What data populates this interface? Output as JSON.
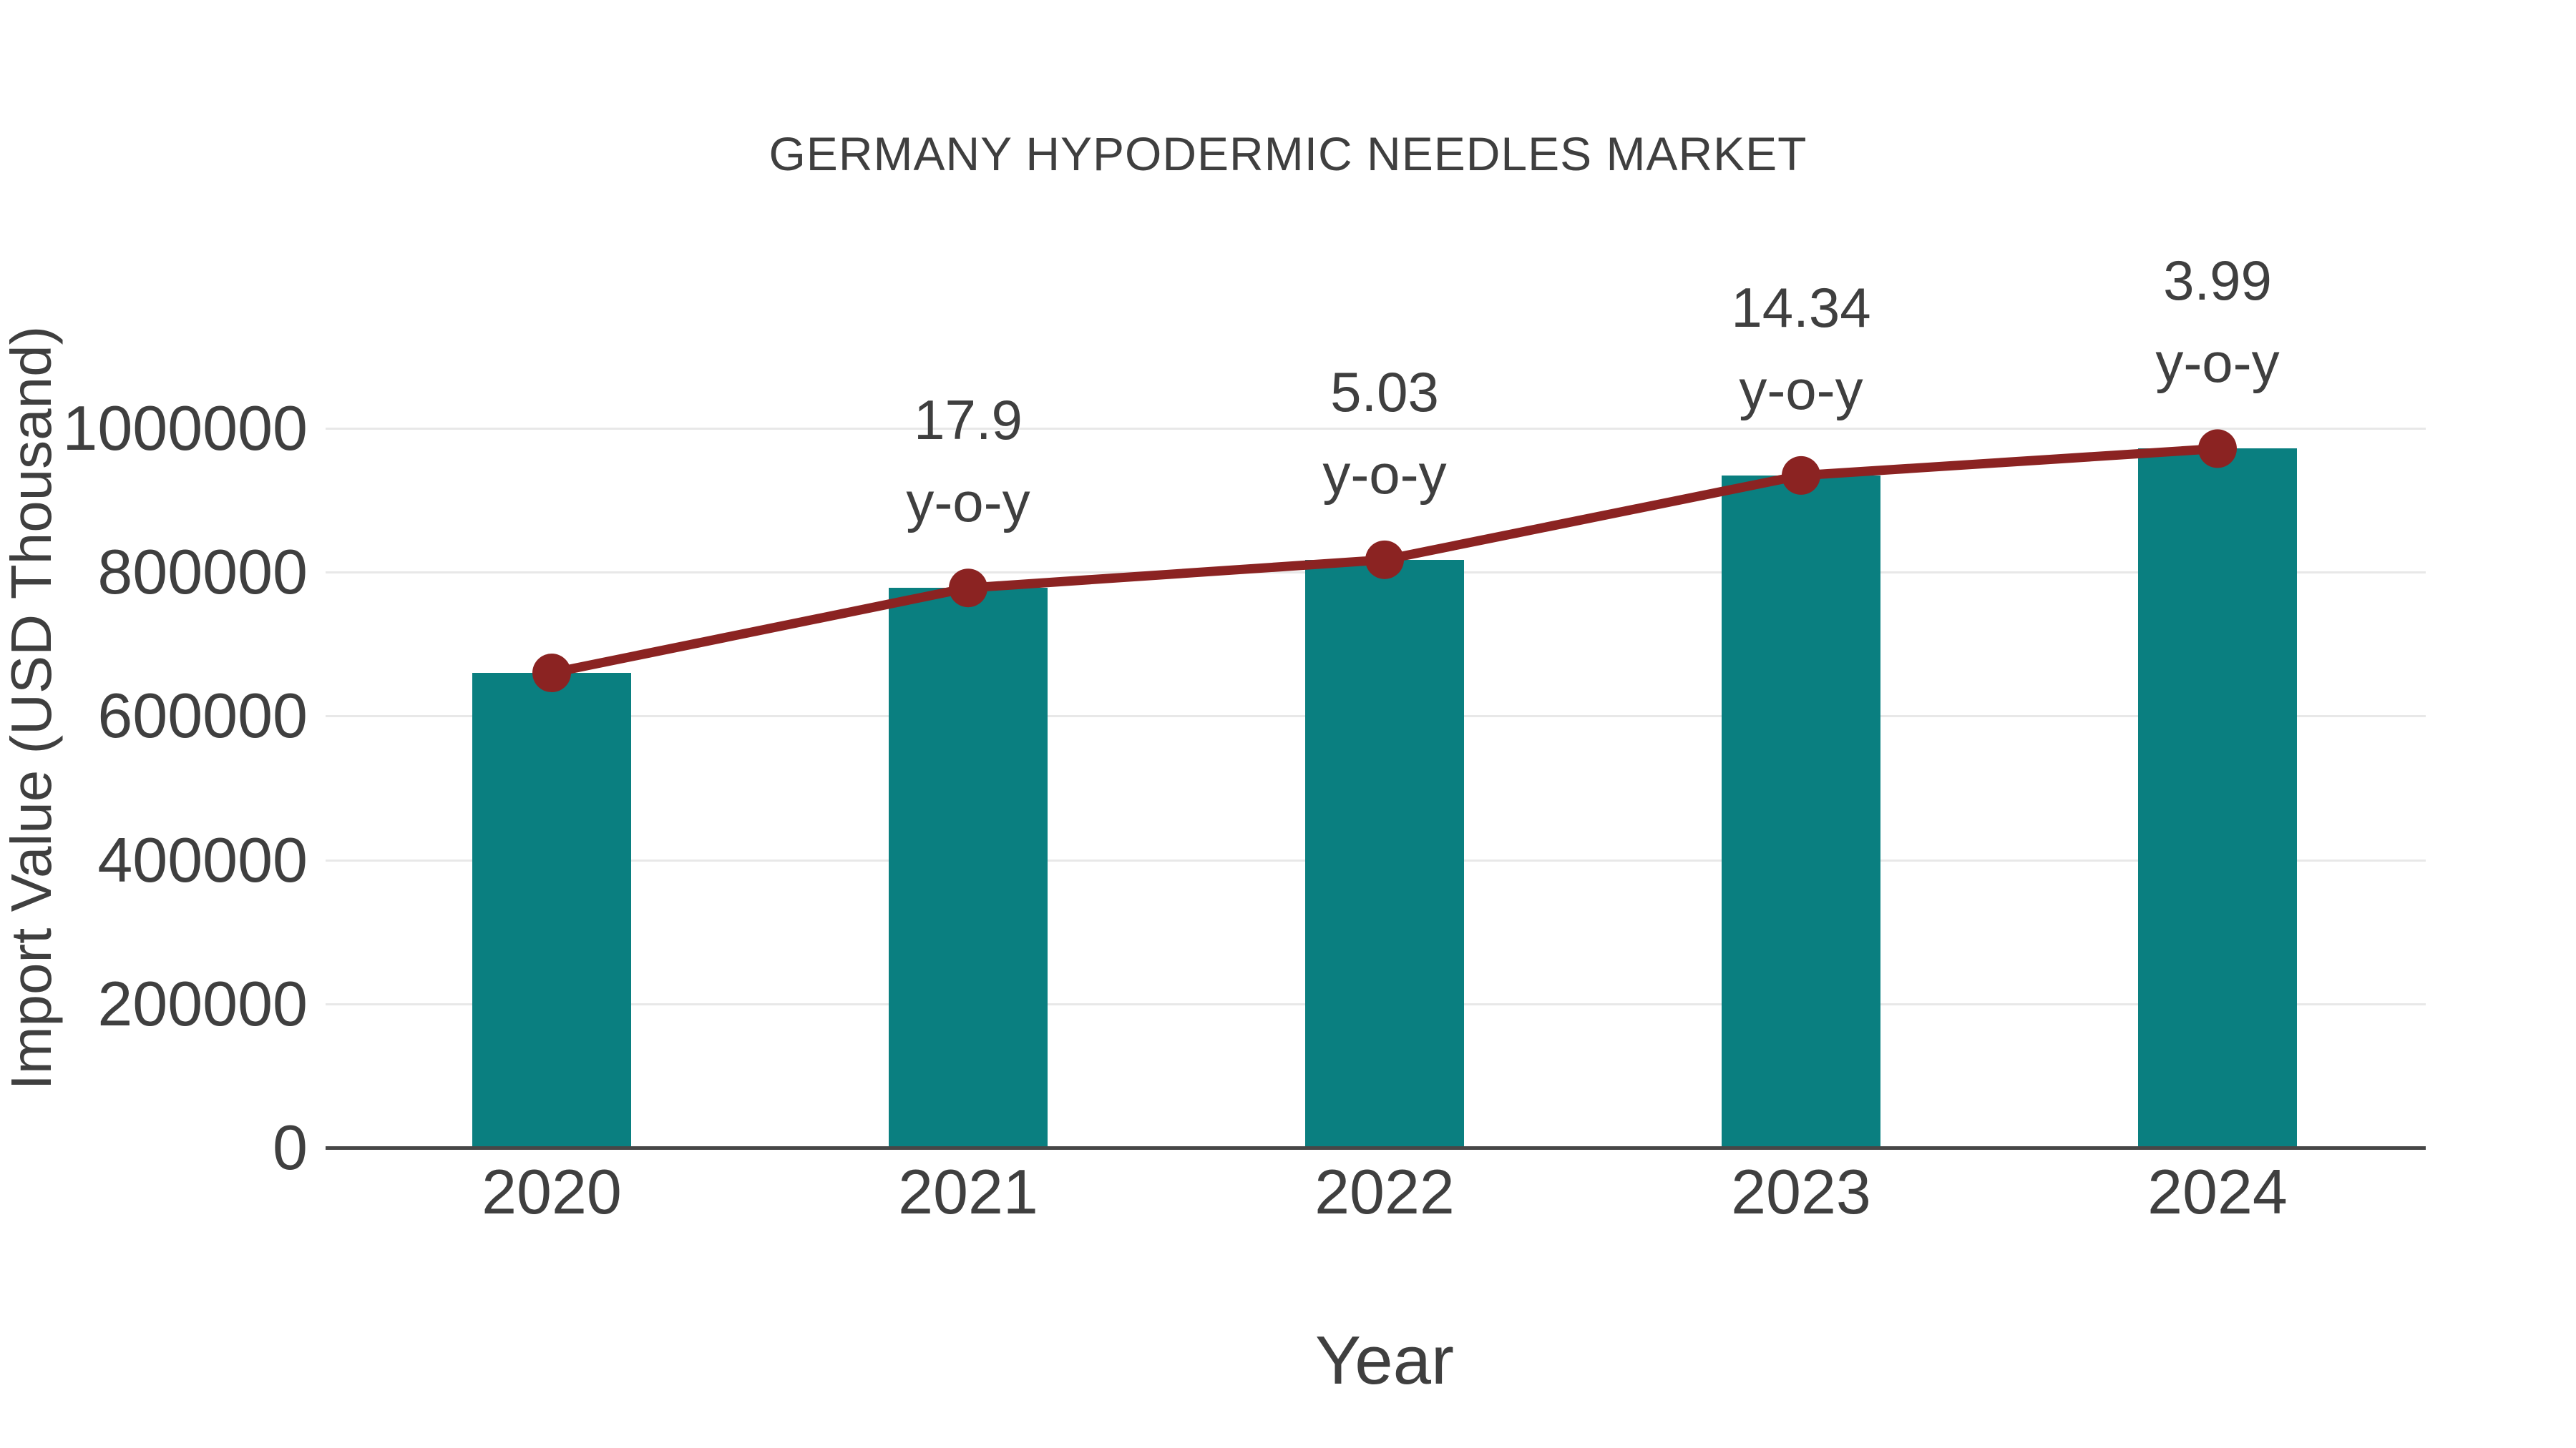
{
  "title": "GERMANY HYPODERMIC NEEDLES MARKET",
  "chart_data": {
    "type": "bar",
    "subtype": "bar-line-combo",
    "title": "GERMANY HYPODERMIC NEEDLES MARKET",
    "xlabel": "Year",
    "ylabel": "Import Value (USD Thousand)",
    "categories": [
      "2020",
      "2021",
      "2022",
      "2023",
      "2024"
    ],
    "values": [
      660000,
      778140,
      817280,
      934480,
      971770
    ],
    "line_values": [
      660000,
      778140,
      817280,
      934480,
      971770
    ],
    "growth_labels": [
      null,
      "17.9",
      "5.03",
      "14.34",
      "3.99"
    ],
    "growth_label_suffix": "y-o-y",
    "y_ticks": [
      0,
      200000,
      400000,
      600000,
      800000,
      1000000
    ],
    "y_tick_labels": [
      "0",
      "200000",
      "400000",
      "600000",
      "800000",
      "1000000"
    ],
    "ylim": [
      0,
      1200000
    ],
    "grid": "horizontal",
    "legend": "none"
  },
  "colors": {
    "bar": "#0a7f80",
    "line": "#8b2322",
    "marker": "#8b2322",
    "text": "#3f3f3f",
    "gridline": "#e8e8e8",
    "axis_line": "#474747",
    "background": "#ffffff"
  }
}
